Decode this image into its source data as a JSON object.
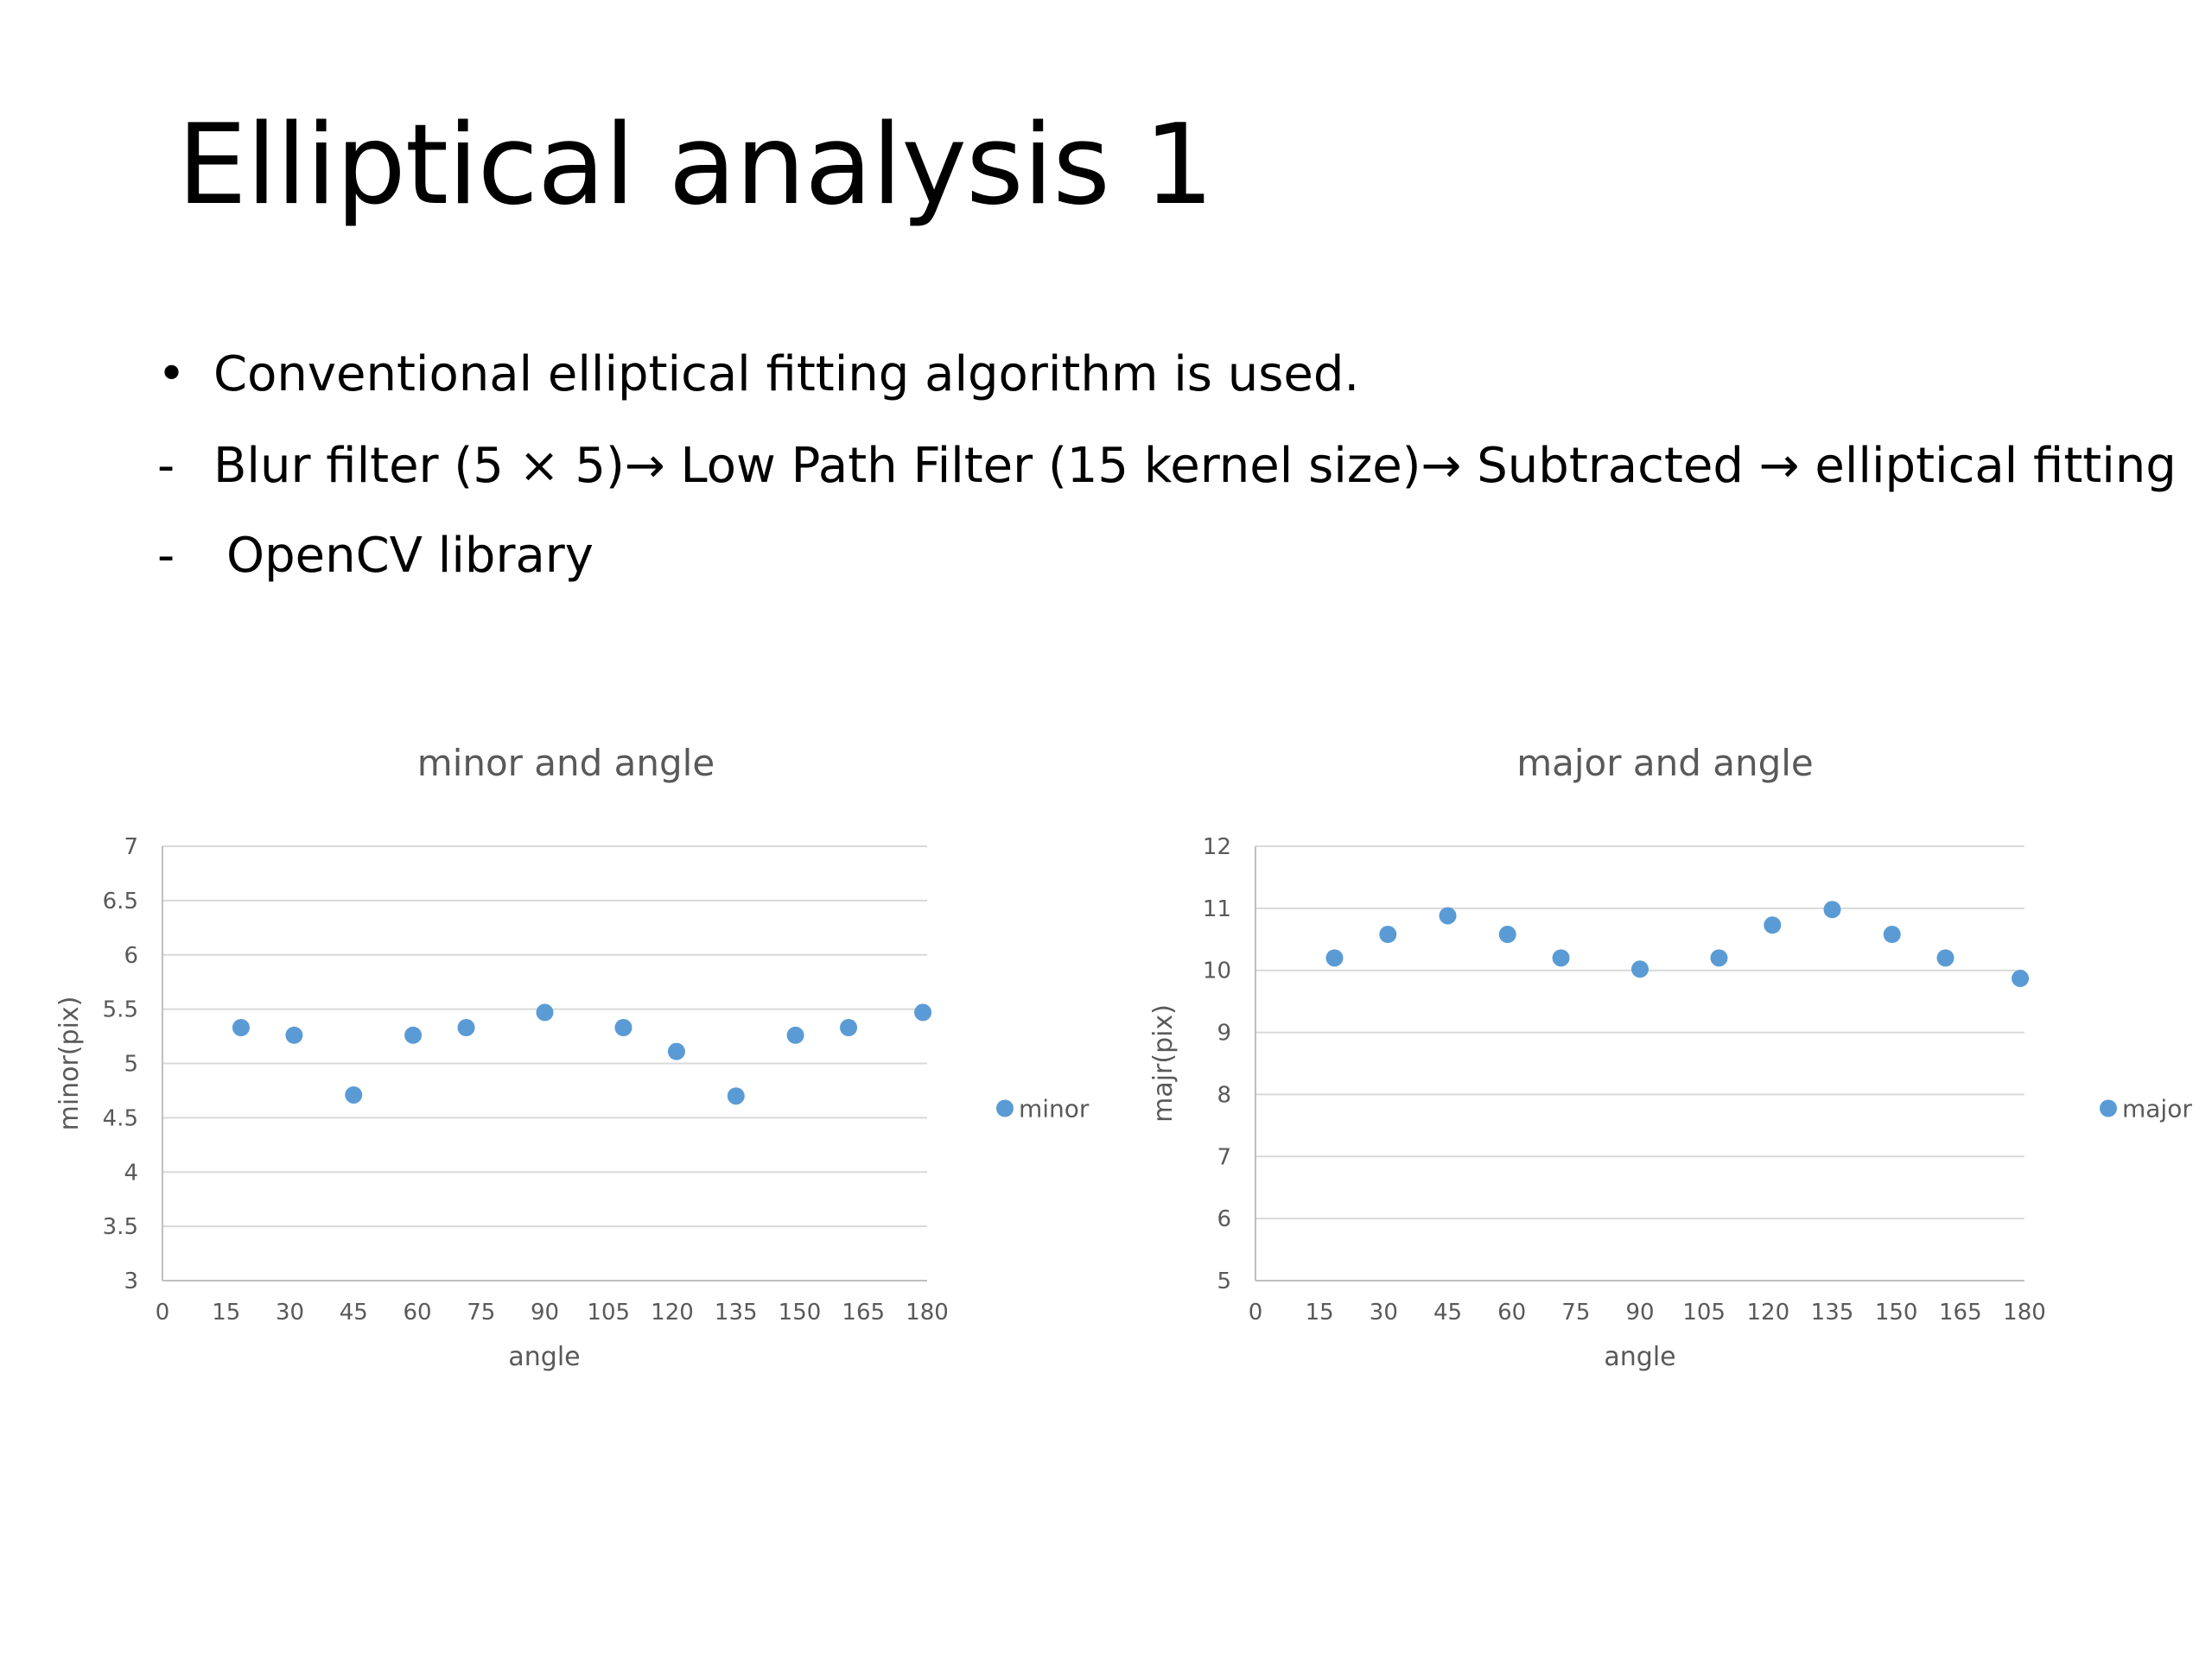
{
  "slide": {
    "title": "Elliptical analysis 1",
    "bullets": [
      {
        "marker": "•",
        "text": "Conventional elliptical fitting algorithm is used."
      },
      {
        "marker": "-",
        "text": "Blur filter (5 × 5)→ Low Path Filter (15 kernel size)→ Subtracted → elliptical fitting"
      },
      {
        "marker": "-",
        "text": "OpenCV library"
      }
    ]
  },
  "chart_data": [
    {
      "type": "scatter",
      "title": "minor and angle",
      "xlabel": "angle",
      "ylabel": "minor(pix)",
      "xlim": [
        0,
        180
      ],
      "ylim": [
        3,
        7
      ],
      "xticks": [
        0,
        15,
        30,
        45,
        60,
        75,
        90,
        105,
        120,
        135,
        150,
        165,
        180
      ],
      "yticks": [
        "3",
        "3.5",
        "4",
        "4.5",
        "5",
        "5.5",
        "6",
        "6.5",
        "7"
      ],
      "grid": true,
      "legend_position": "right",
      "color": "#5B9BD5",
      "series": [
        {
          "name": "minor",
          "x": [
            18.5,
            31,
            45,
            59,
            71.5,
            90,
            108.5,
            121,
            135,
            149,
            161.5,
            179
          ],
          "y": [
            5.33,
            5.26,
            4.71,
            5.26,
            5.33,
            5.47,
            5.33,
            5.11,
            4.7,
            5.26,
            5.33,
            5.47
          ]
        }
      ]
    },
    {
      "type": "scatter",
      "title": "major and angle",
      "xlabel": "angle",
      "ylabel": "majr(pix)",
      "xlim": [
        0,
        180
      ],
      "ylim": [
        5,
        12
      ],
      "xticks": [
        0,
        15,
        30,
        45,
        60,
        75,
        90,
        105,
        120,
        135,
        150,
        165,
        180
      ],
      "yticks": [
        "5",
        "6",
        "7",
        "8",
        "9",
        "10",
        "11",
        "12"
      ],
      "grid": true,
      "legend_position": "right",
      "color": "#5B9BD5",
      "series": [
        {
          "name": "major",
          "x": [
            18.5,
            31,
            45,
            59,
            71.5,
            90,
            108.5,
            121,
            135,
            149,
            161.5,
            179
          ],
          "y": [
            10.2,
            10.58,
            10.88,
            10.58,
            10.2,
            10.02,
            10.2,
            10.73,
            10.98,
            10.58,
            10.2,
            9.87
          ]
        }
      ]
    }
  ]
}
